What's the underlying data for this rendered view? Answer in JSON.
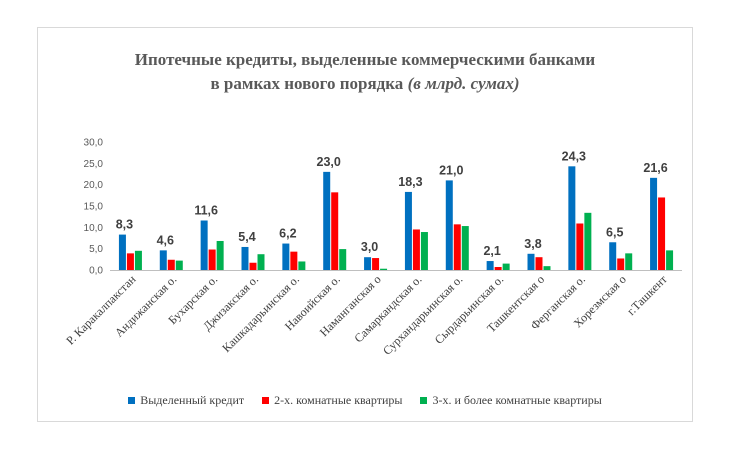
{
  "chart_data": {
    "type": "bar",
    "title_line1": "Ипотечные кредиты, выделенные коммерческими банками",
    "title_line2": "в рамках нового порядка",
    "title_italic": "(в млрд. сумах)",
    "categories": [
      "Р. Каракалпакстан",
      "Андижанская о.",
      "Бухарская о.",
      "Джизакская о.",
      "Кашкадарьинская о.",
      "Навоийская о.",
      "Наманганская о",
      "Самаркандская о.",
      "Сурхандарьинская о.",
      "Сырдарьинская о.",
      "Ташкентская о",
      "Ферганская о.",
      "Хорезмская о",
      "г.Ташкент"
    ],
    "series": [
      {
        "name": "Выделенный кредит",
        "color": "#0070c0",
        "values": [
          8.3,
          4.6,
          11.6,
          5.4,
          6.2,
          23.0,
          3.0,
          18.3,
          21.0,
          2.1,
          3.8,
          24.3,
          6.5,
          21.6
        ]
      },
      {
        "name": "2-х. комнатные квартиры",
        "color": "#ff0000",
        "values": [
          3.9,
          2.4,
          4.8,
          1.7,
          4.3,
          18.2,
          2.8,
          9.5,
          10.7,
          0.7,
          3.0,
          10.9,
          2.7,
          17.0
        ]
      },
      {
        "name": "3-х. и более комнатные квартиры",
        "color": "#00b050",
        "values": [
          4.5,
          2.2,
          6.8,
          3.7,
          2.0,
          4.9,
          0.3,
          8.9,
          10.3,
          1.5,
          0.9,
          13.4,
          3.9,
          4.6
        ]
      }
    ],
    "data_labels": [
      "8,3",
      "4,6",
      "11,6",
      "5,4",
      "6,2",
      "23,0",
      "3,0",
      "18,3",
      "21,0",
      "2,1",
      "3,8",
      "24,3",
      "6,5",
      "21,6"
    ],
    "yticks": [
      "0,0",
      "5,0",
      "10,0",
      "15,0",
      "20,0",
      "25,0",
      "30,0"
    ],
    "ylim": [
      0,
      30
    ],
    "grid": false,
    "legend_position": "bottom"
  }
}
